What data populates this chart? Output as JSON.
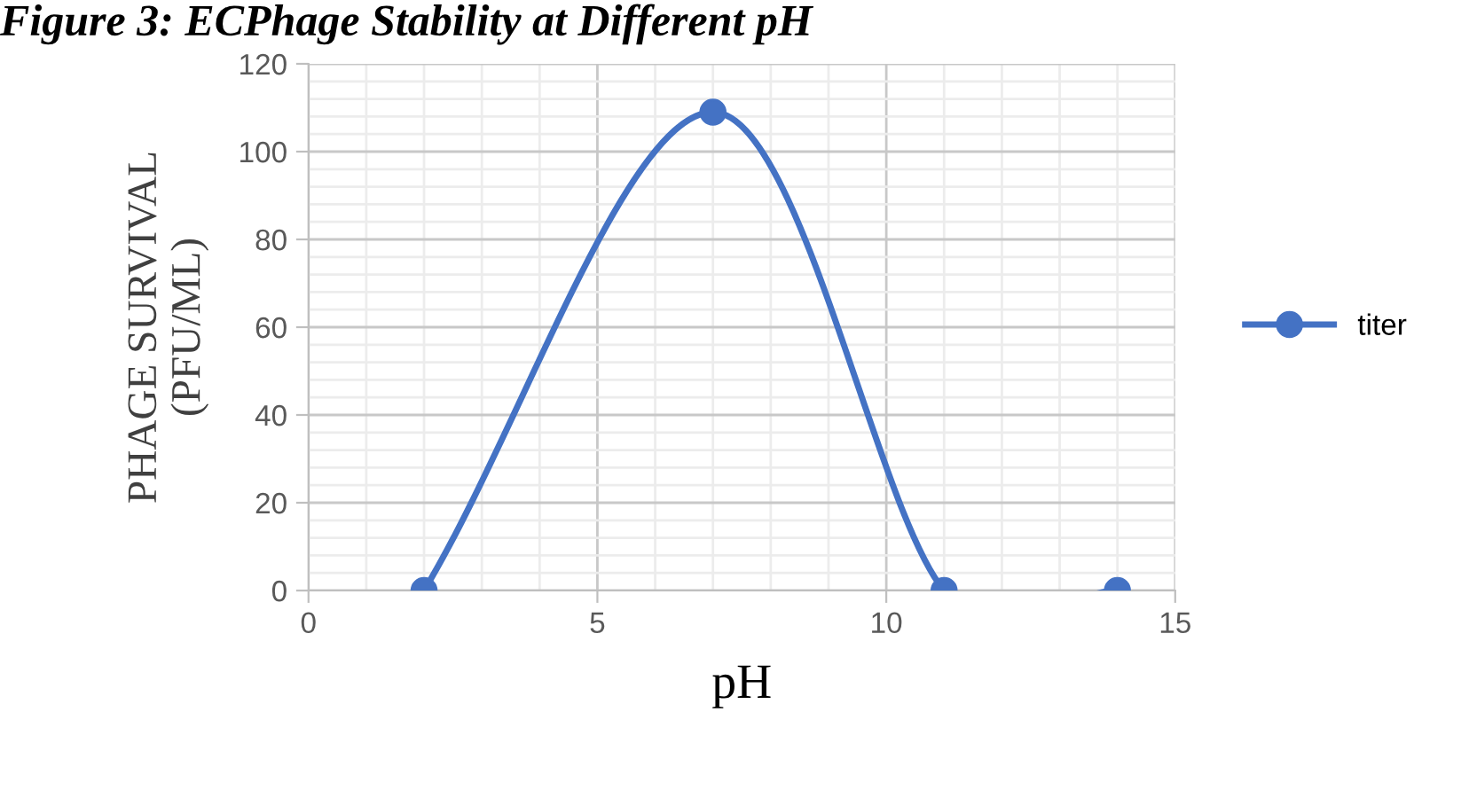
{
  "chart_data": {
    "type": "line",
    "title": "Figure 3: ECPhage Stability at Different pH",
    "xlabel": "pH",
    "ylabel": "PHAGE SURVIVAL\n(PFU/ML)",
    "series": [
      {
        "name": "titer",
        "color": "#4472c4",
        "x": [
          2,
          7,
          11,
          14
        ],
        "values": [
          0,
          109,
          0,
          0
        ]
      }
    ],
    "xlim": [
      0,
      15
    ],
    "xticks": [
      0,
      5,
      10,
      15
    ],
    "ylim": [
      0,
      120
    ],
    "yticks": [
      0,
      20,
      40,
      60,
      80,
      100,
      120
    ],
    "grid": true,
    "legend": "right",
    "marker": "circle",
    "line_style": "solid"
  }
}
